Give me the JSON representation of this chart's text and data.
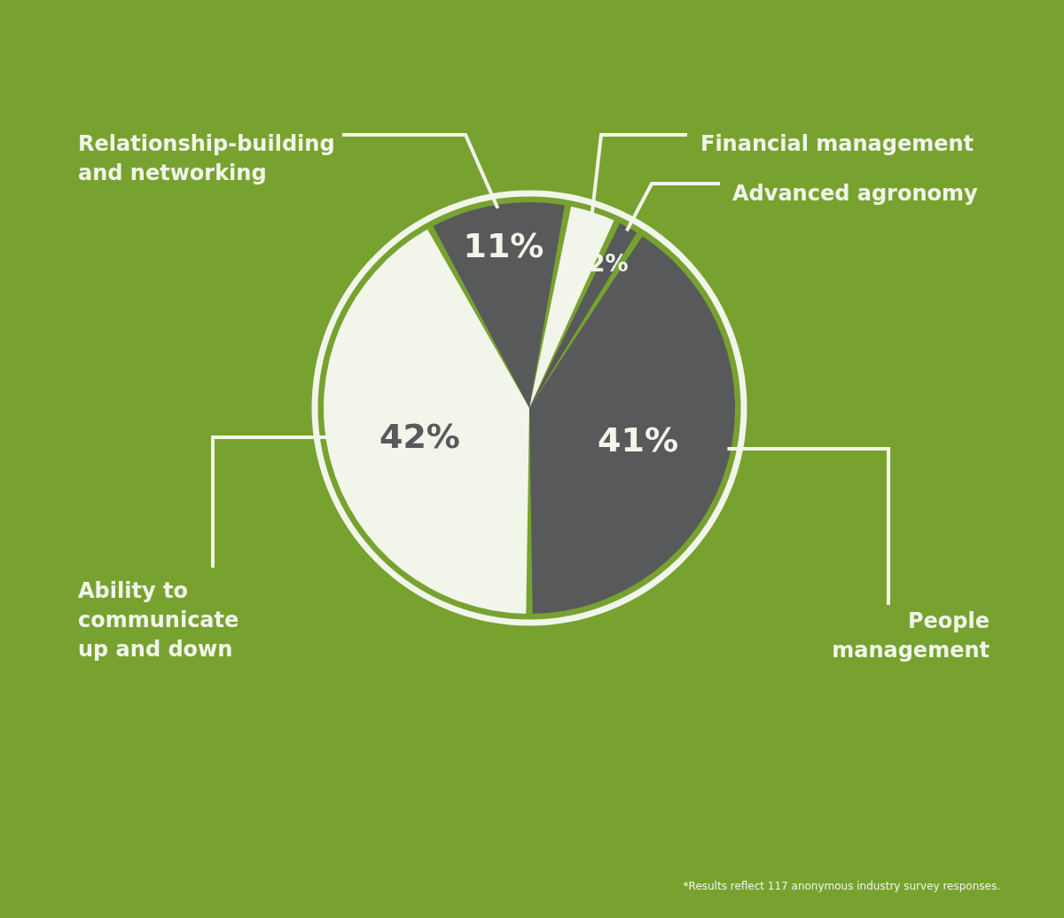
{
  "chart_data": {
    "type": "pie",
    "categories": [
      "Financial management",
      "Advanced agronomy",
      "People management",
      "Ability to communicate up and down",
      "Relationship-building and networking"
    ],
    "values": [
      4,
      2,
      41,
      42,
      11
    ],
    "colors": [
      "#f1f5ea",
      "#58595b",
      "#58595b",
      "#f1f5ea",
      "#58595b"
    ],
    "value_labels": [
      null,
      "2%",
      "41%",
      "42%",
      "11%"
    ],
    "annotations": [
      "*Results reflect 117 anonymous industry survey responses."
    ]
  }
}
